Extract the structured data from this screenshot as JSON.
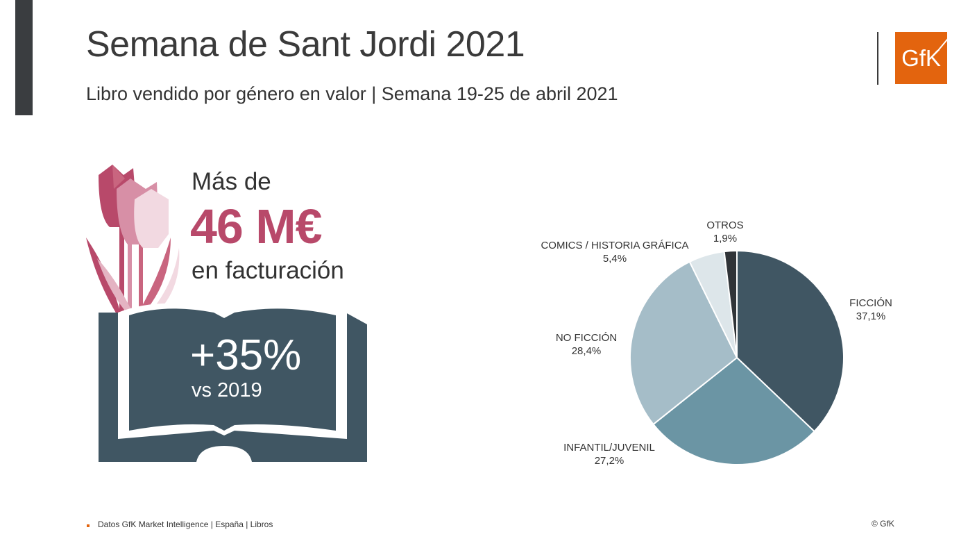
{
  "header": {
    "title": "Semana de Sant Jordi 2021",
    "subtitle": "Libro vendido por género en valor | Semana 19-25 de abril 2021"
  },
  "logo": {
    "text": "GfK",
    "color": "#e3640e"
  },
  "highlight": {
    "prefix": "Más de",
    "value": "46 M€",
    "suffix": "en facturación",
    "growth": "+35%",
    "growth_comparison": "vs 2019",
    "accent_color": "#b8496a",
    "book_color": "#405663",
    "icons": [
      "tulip-icon",
      "open-book-icon"
    ]
  },
  "chart_data": {
    "type": "pie",
    "start_angle_deg": 0,
    "direction": "clockwise",
    "slices": [
      {
        "label": "FICCIÓN",
        "value": 37.1,
        "display": "37,1%",
        "color": "#405663"
      },
      {
        "label": "INFANTIL/JUVENIL",
        "value": 27.2,
        "display": "27,2%",
        "color": "#6b95a4"
      },
      {
        "label": "NO FICCIÓN",
        "value": 28.4,
        "display": "28,4%",
        "color": "#a5bdc8"
      },
      {
        "label": "COMICS / HISTORIA GRÁFICA",
        "value": 5.4,
        "display": "5,4%",
        "color": "#dde6ea"
      },
      {
        "label": "OTROS",
        "value": 1.9,
        "display": "1,9%",
        "color": "#303438"
      }
    ]
  },
  "footer": {
    "source": "Datos GfK Market Intelligence | España | Libros",
    "copyright": "© GfK"
  }
}
